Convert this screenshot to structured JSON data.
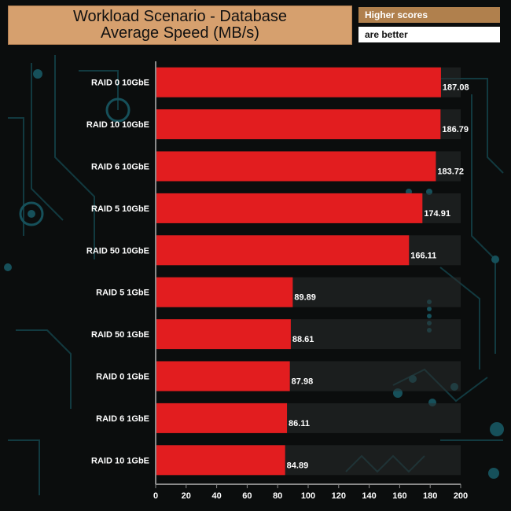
{
  "title": {
    "line1": "Workload Scenario - Database",
    "line2": "Average Speed (MB/s)"
  },
  "legend": {
    "line1": "Higher scores",
    "line2": "are better"
  },
  "colors": {
    "bar": "#e21d1f",
    "background": "#0b0d0d",
    "circuit": "#16444a",
    "title_bg": "#d6a06e",
    "legend_bg": "#b0804d"
  },
  "chart_data": {
    "type": "bar",
    "orientation": "horizontal",
    "categories": [
      "RAID 0 10GbE",
      "RAID 10 10GbE",
      "RAID 6 10GbE",
      "RAID 5 10GbE",
      "RAID 50 10GbE",
      "RAID 5 1GbE",
      "RAID 50 1GbE",
      "RAID 0 1GbE",
      "RAID 6 1GbE",
      "RAID 10 1GbE"
    ],
    "values": [
      187.08,
      186.79,
      183.72,
      174.91,
      166.11,
      89.89,
      88.61,
      87.98,
      86.11,
      84.89
    ],
    "value_labels": [
      "187.08",
      "186.79",
      "183.72",
      "174.91",
      "166.11",
      "89.89",
      "88.61",
      "87.98",
      "86.11",
      "84.89"
    ],
    "xlim": [
      0,
      200
    ],
    "xticks": [
      0,
      20,
      40,
      60,
      80,
      100,
      120,
      140,
      160,
      180,
      200
    ],
    "grid": false
  }
}
